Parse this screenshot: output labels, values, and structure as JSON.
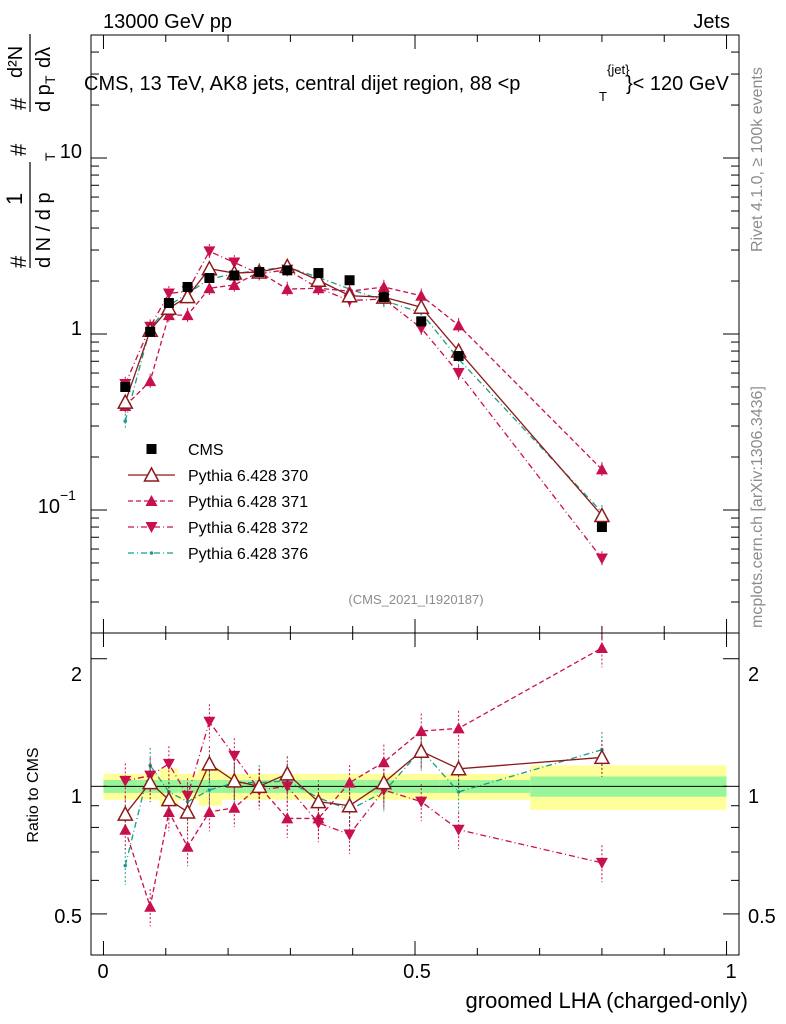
{
  "header": {
    "energy_label": "13000 GeV pp",
    "category_label": "Jets",
    "side_label_top": "Rivet 4.1.0, ≥ 100k events",
    "side_label_bottom": "mcplots.cern.ch [arXiv:1306.3436]",
    "analysis_id": "(CMS_2021_I1920187)"
  },
  "chart_data": {
    "type": "line",
    "title": "CMS, 13 TeV, AK8 jets, central dijet region, 88 <p_T^{jet}< 120 GeV",
    "title_parts": {
      "prefix": "CMS, 13 TeV, AK8 jets, central dijet region, 88 <p",
      "sub": "T",
      "sup": "{jet}",
      "suffix": "}< 120 GeV"
    },
    "xlabel": "groomed LHA (charged-only)",
    "ylabel": "1/(dN/dp_T) dN^2/(dp_T dλ)",
    "ylabel_parts": {
      "num_left": "1",
      "den_left": "d N / d p",
      "hash": "#",
      "num_right": "d²N",
      "den_right": "d p",
      "den_right2": "dλ",
      "sub": "T"
    },
    "ratio_ylabel": "Ratio to CMS",
    "xlim": [
      -0.02,
      1.02
    ],
    "ylim": [
      0.02,
      50
    ],
    "yscale": "log",
    "ratio_ylim": [
      0.4,
      2.3
    ],
    "x_ticks": [
      0,
      0.5,
      1
    ],
    "x_tick_labels": [
      "0",
      "0.5",
      "1"
    ],
    "y_tick_labels": {
      "ten": "10",
      "one": "1",
      "tenth_base": "10",
      "tenth_exp": "−1"
    },
    "ratio_y_ticks": [
      0.5,
      1,
      2
    ],
    "ratio_y_tick_labels": [
      "0.5",
      "1",
      "2"
    ],
    "x": [
      0.035,
      0.075,
      0.105,
      0.135,
      0.17,
      0.21,
      0.25,
      0.295,
      0.345,
      0.395,
      0.45,
      0.51,
      0.57,
      0.8
    ],
    "series": [
      {
        "name": "CMS",
        "color": "#000000",
        "marker": "square",
        "dash": "",
        "values": [
          0.5,
          1.03,
          1.5,
          1.85,
          2.08,
          2.15,
          2.25,
          2.3,
          2.22,
          2.02,
          1.62,
          1.18,
          0.75,
          0.08
        ],
        "ratio": [
          1,
          1,
          1,
          1,
          1,
          1,
          1,
          1,
          1,
          1,
          1,
          1,
          1,
          1
        ]
      },
      {
        "name": "Pythia 6.428 370",
        "color": "#8b1a1a",
        "marker": "open-triangle",
        "dash": "",
        "values": [
          0.41,
          1.05,
          1.4,
          1.63,
          2.35,
          2.22,
          2.25,
          2.42,
          2.02,
          1.65,
          1.62,
          1.42,
          0.8,
          0.093
        ],
        "ratio": [
          0.86,
          1.02,
          0.93,
          0.87,
          1.13,
          1.03,
          1.0,
          1.07,
          0.92,
          0.9,
          1.02,
          1.21,
          1.1,
          1.17
        ]
      },
      {
        "name": "Pythia 6.428 371",
        "color": "#c8104e",
        "marker": "triangle-up",
        "dash": "5,3",
        "values": [
          0.39,
          0.54,
          1.28,
          1.28,
          1.82,
          1.9,
          2.25,
          1.8,
          1.82,
          1.75,
          1.85,
          1.65,
          1.12,
          0.17
        ],
        "ratio": [
          0.79,
          0.52,
          0.87,
          0.72,
          0.87,
          0.89,
          1.0,
          0.84,
          0.84,
          1.02,
          1.14,
          1.35,
          1.37,
          2.12
        ]
      },
      {
        "name": "Pythia 6.428 372",
        "color": "#c8104e",
        "marker": "triangle-down",
        "dash": "6,3,1,3",
        "values": [
          0.52,
          1.1,
          1.7,
          1.75,
          2.95,
          2.55,
          2.2,
          2.32,
          1.82,
          1.55,
          1.58,
          1.08,
          0.6,
          0.053
        ],
        "ratio": [
          1.03,
          1.06,
          1.13,
          0.95,
          1.42,
          1.18,
          0.98,
          1.0,
          0.82,
          0.77,
          0.98,
          0.92,
          0.79,
          0.66
        ]
      },
      {
        "name": "Pythia 6.428 376",
        "color": "#1a9c8c",
        "marker": "dot",
        "dash": "6,3,1,3",
        "values": [
          0.32,
          1.08,
          1.45,
          1.7,
          2.05,
          2.2,
          2.3,
          2.4,
          2.1,
          1.8,
          1.55,
          1.32,
          0.72,
          0.097
        ],
        "ratio": [
          0.65,
          1.12,
          0.97,
          0.92,
          0.98,
          1.02,
          1.02,
          1.03,
          0.94,
          0.88,
          0.97,
          1.22,
          0.97,
          1.22
        ]
      }
    ],
    "legend_position": "bottom-left"
  }
}
